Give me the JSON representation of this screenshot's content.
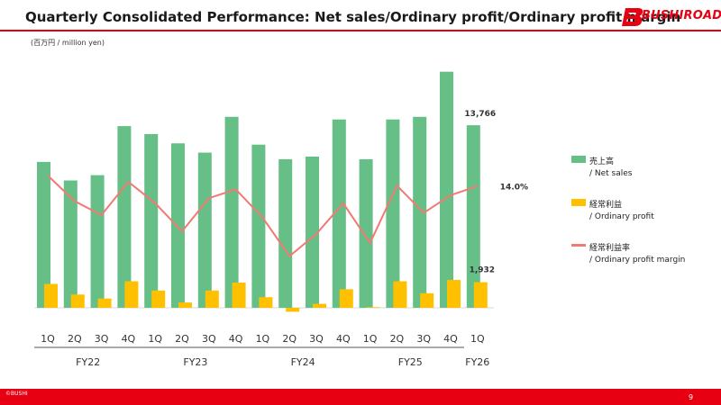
{
  "header": {
    "title": "Quarterly Consolidated Performance: Net sales/Ordinary profit/Ordinary profit margin",
    "logo_text": "BUSHIROAD"
  },
  "unit_label": "(百万円 / million yen)",
  "legend": {
    "sales_jp": "売上高",
    "sales_en": "/ Net sales",
    "profit_jp": "経常利益",
    "profit_en": "/ Ordinary profit",
    "margin_jp": "経常利益率",
    "margin_en": "/ Ordinary profit margin"
  },
  "footer": {
    "copyright": "©BUSHI",
    "page_number": "9"
  },
  "colors": {
    "sales": "#66bf86",
    "profit": "#ffc000",
    "margin": "#f07a74",
    "brand": "#e60012"
  },
  "chart_data": {
    "type": "bar",
    "categories": [
      "1Q",
      "2Q",
      "3Q",
      "4Q",
      "1Q",
      "2Q",
      "3Q",
      "4Q",
      "1Q",
      "2Q",
      "3Q",
      "4Q",
      "1Q",
      "2Q",
      "3Q",
      "4Q",
      "1Q"
    ],
    "groups": [
      {
        "label": "FY22",
        "start": 0,
        "end": 3
      },
      {
        "label": "FY23",
        "start": 4,
        "end": 7
      },
      {
        "label": "FY24",
        "start": 8,
        "end": 11
      },
      {
        "label": "FY25",
        "start": 12,
        "end": 15
      },
      {
        "label": "FY26",
        "start": 16,
        "end": 16
      }
    ],
    "series": [
      {
        "name": "Net sales",
        "type": "bar",
        "values": [
          11000,
          9600,
          10000,
          13700,
          13100,
          12400,
          11700,
          14400,
          12300,
          11200,
          11400,
          14200,
          11200,
          14200,
          14400,
          17800,
          13766
        ]
      },
      {
        "name": "Ordinary profit",
        "type": "bar",
        "values": [
          1800,
          1000,
          700,
          2000,
          1300,
          400,
          1300,
          1900,
          800,
          -300,
          300,
          1400,
          50,
          2000,
          1100,
          2100,
          1932
        ]
      },
      {
        "name": "Ordinary profit margin",
        "type": "line",
        "unit": "%",
        "values": [
          16.5,
          10.4,
          7.1,
          15.0,
          9.9,
          3.2,
          11.1,
          13.2,
          6.5,
          -2.7,
          2.6,
          9.9,
          0.4,
          14.1,
          7.6,
          11.8,
          14.0
        ]
      }
    ],
    "ylim": [
      -600,
      19000
    ],
    "margin_ylim": [
      -15,
      45
    ],
    "data_labels": {
      "sales_last": "13,766",
      "profit_last": "1,932",
      "margin_last": "14.0%"
    }
  }
}
